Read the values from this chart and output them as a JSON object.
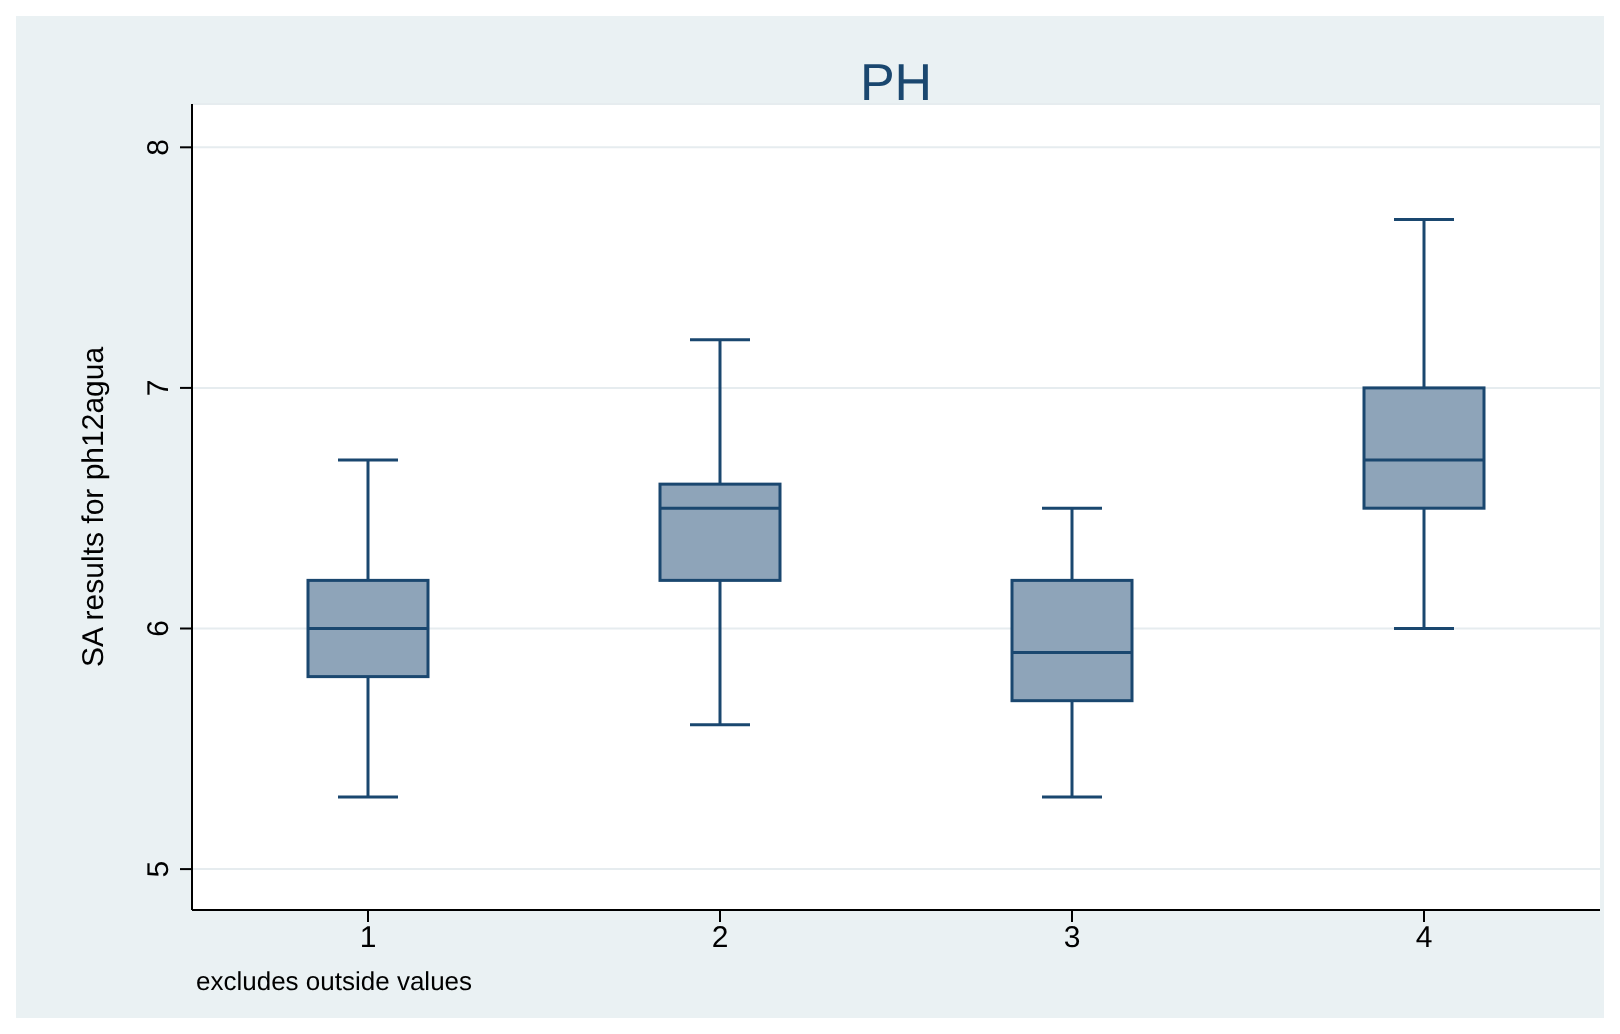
{
  "chart_data": {
    "type": "box",
    "title": "PH",
    "ylabel": "SA results for ph12agua",
    "categories": [
      "1",
      "2",
      "3",
      "4"
    ],
    "boxes": [
      {
        "low": 5.3,
        "q1": 5.8,
        "median": 6.0,
        "q3": 6.2,
        "high": 6.7
      },
      {
        "low": 5.6,
        "q1": 6.2,
        "median": 6.5,
        "q3": 6.6,
        "high": 7.2
      },
      {
        "low": 5.3,
        "q1": 5.7,
        "median": 5.9,
        "q3": 6.2,
        "high": 6.5
      },
      {
        "low": 6.0,
        "q1": 6.5,
        "median": 6.7,
        "q3": 7.0,
        "high": 7.7
      }
    ],
    "color": "#8ea4b9",
    "ylim": [
      4.83,
      8.18
    ],
    "yticks": [
      5,
      6,
      7,
      8
    ],
    "grid": "y",
    "annotations": [
      "excludes outside values"
    ]
  }
}
